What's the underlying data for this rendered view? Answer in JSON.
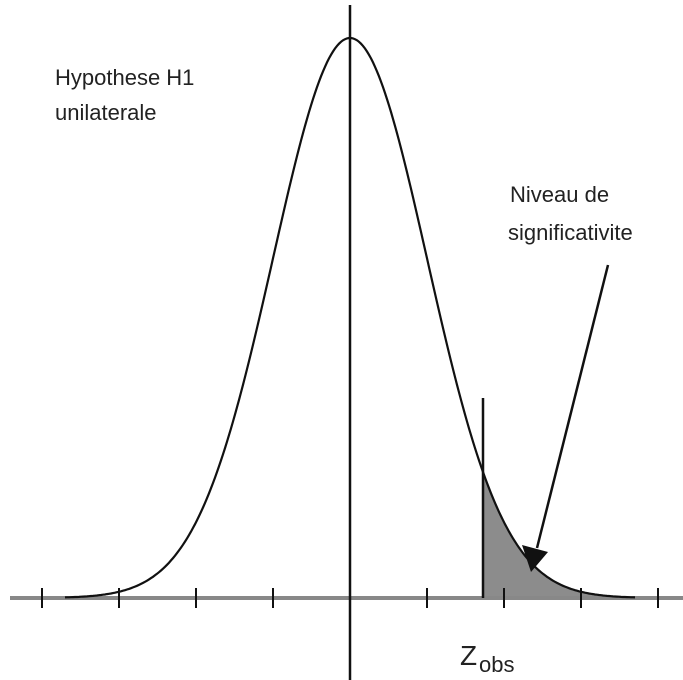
{
  "hypothesis_label": {
    "lines": [
      "Hypothese H1",
      "unilaterale"
    ]
  },
  "significance_label": {
    "lines": [
      "Niveau de",
      "significativite"
    ]
  },
  "z_label": {
    "main": "Z",
    "subscript": "obs"
  }
}
